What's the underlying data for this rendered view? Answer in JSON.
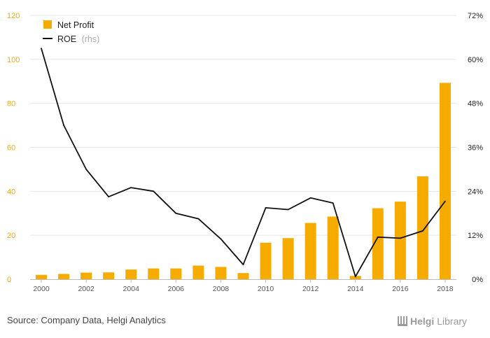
{
  "chart_data": {
    "type": "bar",
    "x": [
      "2000",
      "2001",
      "2002",
      "2003",
      "2004",
      "2005",
      "2006",
      "2007",
      "2008",
      "2009",
      "2010",
      "2011",
      "2012",
      "2013",
      "2014",
      "2015",
      "2016",
      "2017",
      "2018"
    ],
    "series": [
      {
        "name": "Net Profit",
        "type": "bar",
        "axis": "left",
        "color": "#f5ab00",
        "values": [
          2.0,
          2.4,
          3.0,
          3.1,
          4.4,
          4.9,
          4.9,
          6.2,
          5.6,
          2.8,
          16.6,
          18.7,
          25.6,
          28.5,
          1.5,
          32.3,
          35.3,
          46.8,
          89.3
        ]
      },
      {
        "name": "ROE",
        "type": "line",
        "axis": "right",
        "color": "#111111",
        "values": [
          0.63,
          0.42,
          0.3,
          0.225,
          0.25,
          0.24,
          0.18,
          0.165,
          0.11,
          0.04,
          0.195,
          0.19,
          0.222,
          0.208,
          0.007,
          0.115,
          0.112,
          0.132,
          0.213
        ]
      }
    ],
    "legend": {
      "position": "top-left",
      "net_profit": "Net Profit",
      "roe": "ROE",
      "roe_suffix": "(rhs)"
    },
    "y_left": {
      "min": 0,
      "max": 120,
      "ticks": [
        "0",
        "20",
        "40",
        "60",
        "80",
        "100",
        "120"
      ]
    },
    "y_right": {
      "min": 0,
      "max": 0.72,
      "ticks": [
        "0%",
        "12%",
        "24%",
        "36%",
        "48%",
        "60%",
        "72%"
      ]
    },
    "x_tick_labels": [
      "2000",
      "2002",
      "2004",
      "2006",
      "2008",
      "2010",
      "2012",
      "2014",
      "2016",
      "2018"
    ],
    "grid": true,
    "source": "Source: Company Data, Helgi Analytics",
    "brand": {
      "name": "Helgi",
      "suffix": "Library"
    }
  }
}
